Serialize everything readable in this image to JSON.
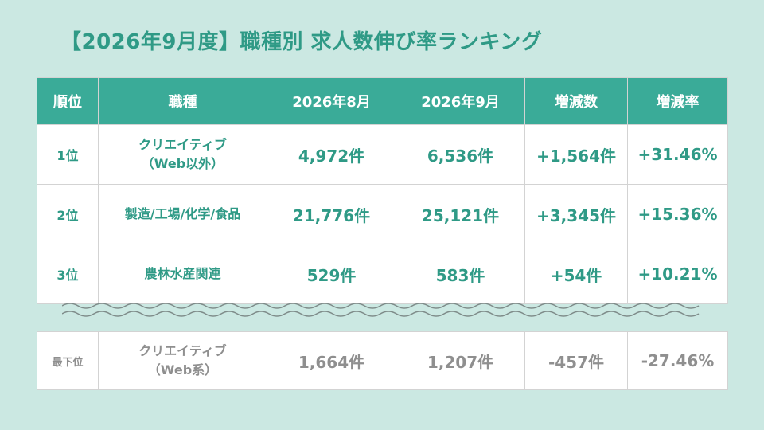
{
  "title": "【2026年9月度】職種別 求人数伸び率ランキング",
  "headers": [
    "順位",
    "職種",
    "2026年8月",
    "2026年9月",
    "増減数",
    "増減率"
  ],
  "rows": [
    {
      "rank": "1位",
      "job_line1": "クリエイティブ",
      "job_line2": "（Web以外）",
      "aug": "4,972件",
      "sep": "6,536件",
      "diff": "+1,564件",
      "rate": "+31.46%"
    },
    {
      "rank": "2位",
      "job_line1": "製造/工場/化学/食品",
      "job_line2": "",
      "aug": "21,776件",
      "sep": "25,121件",
      "diff": "+3,345件",
      "rate": "+15.36%"
    },
    {
      "rank": "3位",
      "job_line1": "農林水産関連",
      "job_line2": "",
      "aug": "529件",
      "sep": "583件",
      "diff": "+54件",
      "rate": "+10.21%"
    }
  ],
  "bottom": {
    "rank": "最下位",
    "job_line1": "クリエイティブ",
    "job_line2": "（Web系）",
    "aug": "1,664件",
    "sep": "1,207件",
    "diff": "-457件",
    "rate": "-27.46%"
  },
  "colors": {
    "accent": "#3aab98",
    "title": "#2f9a86",
    "background": "#cbe8e2",
    "muted": "#8f8f8f"
  }
}
